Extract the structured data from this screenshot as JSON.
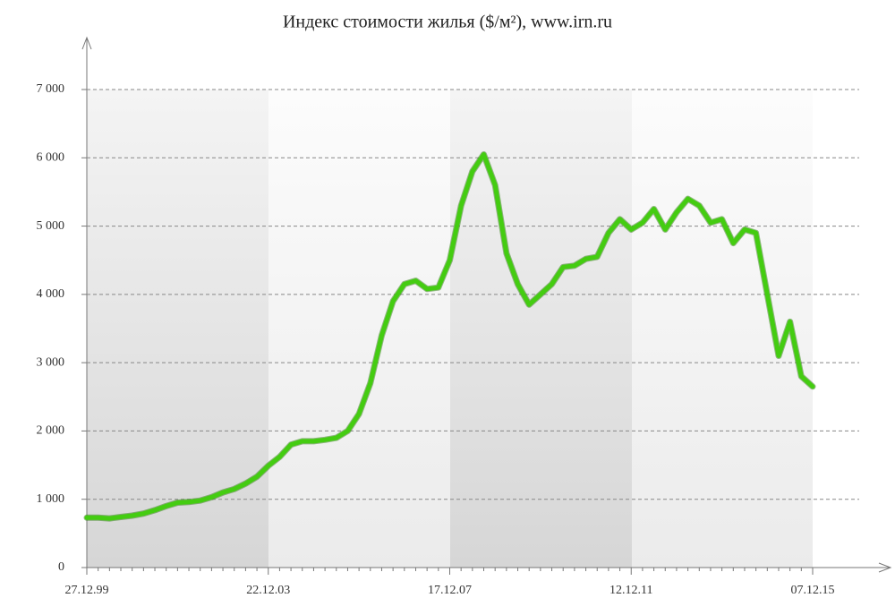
{
  "chart_data": {
    "type": "line",
    "title": "Индекс стоимости жилья ($/м²), www.irn.ru",
    "categories": [
      "27.12.99",
      null,
      null,
      null,
      null,
      null,
      null,
      null,
      null,
      null,
      null,
      null,
      null,
      null,
      null,
      null,
      "22.12.03",
      null,
      null,
      null,
      null,
      null,
      null,
      null,
      null,
      null,
      null,
      null,
      null,
      null,
      null,
      null,
      "17.12.07",
      null,
      null,
      null,
      null,
      null,
      null,
      null,
      null,
      null,
      null,
      null,
      null,
      null,
      null,
      null,
      "12.12.11",
      null,
      null,
      null,
      null,
      null,
      null,
      null,
      null,
      null,
      null,
      null,
      null,
      null,
      null,
      null,
      "07.12.15"
    ],
    "values": [
      730,
      730,
      720,
      740,
      760,
      790,
      840,
      900,
      950,
      960,
      980,
      1030,
      1100,
      1150,
      1230,
      1330,
      1490,
      1620,
      1800,
      1850,
      1850,
      1870,
      1900,
      2000,
      2250,
      2700,
      3400,
      3900,
      4150,
      4200,
      4080,
      4100,
      4500,
      5300,
      5800,
      6050,
      5600,
      4600,
      4150,
      3850,
      4000,
      4150,
      4400,
      4420,
      4520,
      4550,
      4900,
      5100,
      4950,
      5050,
      5250,
      4950,
      5200,
      5400,
      5300,
      5050,
      5100,
      4750,
      4950,
      4900,
      4000,
      3100,
      3600,
      2800,
      2650
    ],
    "color": "#44cc11",
    "ylim": [
      0,
      7000
    ],
    "yticks": [
      0,
      {
        "value": 1000,
        "label": "1 000"
      },
      {
        "value": 2000,
        "label": "2 000"
      },
      {
        "value": 3000,
        "label": "3 000"
      },
      {
        "value": 4000,
        "label": "4 000"
      },
      {
        "value": 5000,
        "label": "5 000"
      },
      {
        "value": 6000,
        "label": "6 000"
      },
      {
        "value": 7000,
        "label": "7 000"
      }
    ],
    "grid": true
  }
}
